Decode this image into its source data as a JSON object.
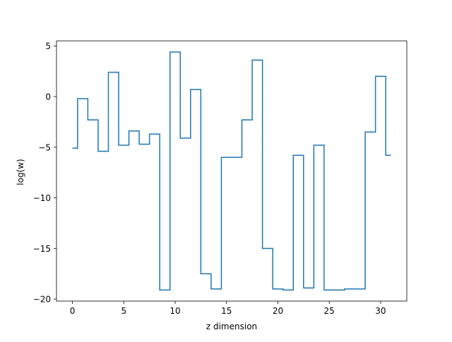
{
  "chart_data": {
    "type": "line",
    "drawstyle": "steps-mid",
    "title": "",
    "xlabel": "z dimension",
    "ylabel": "log(w)",
    "xlim": [
      -1.55,
      32.55
    ],
    "ylim": [
      -20.2,
      5.5
    ],
    "xticks": [
      0,
      5,
      10,
      15,
      20,
      25,
      30
    ],
    "yticks": [
      5,
      0,
      -5,
      -10,
      -15,
      -20
    ],
    "xtick_labels": [
      "0",
      "5",
      "10",
      "15",
      "20",
      "25",
      "30"
    ],
    "ytick_labels": [
      "5",
      "0",
      "−5",
      "−10",
      "−15",
      "−20"
    ],
    "grid": false,
    "line_color": "#1f77b4",
    "series": [
      {
        "x": [
          0,
          1,
          2,
          3,
          4,
          5,
          6,
          7,
          8,
          9,
          10,
          11,
          12,
          13,
          14,
          15,
          16,
          17,
          18,
          19,
          20,
          21,
          22,
          23,
          24,
          25,
          26,
          27,
          28,
          29,
          30,
          31
        ],
        "y": [
          -5.1,
          -0.2,
          -2.3,
          -5.4,
          2.4,
          -4.8,
          -3.4,
          -4.7,
          -3.7,
          -19.1,
          4.4,
          -4.1,
          0.7,
          -17.5,
          -19.0,
          -6.0,
          -6.0,
          -2.3,
          3.6,
          -15.0,
          -19.0,
          -19.1,
          -5.8,
          -18.9,
          -4.8,
          -19.1,
          -19.1,
          -19.0,
          -19.0,
          -3.5,
          2.0,
          -5.8
        ]
      }
    ]
  }
}
